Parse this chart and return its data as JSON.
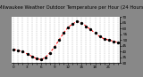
{
  "title": "Milwaukee Weather Outdoor Temperature per Hour (24 Hours)",
  "hours": [
    0,
    1,
    2,
    3,
    4,
    5,
    6,
    7,
    8,
    9,
    10,
    11,
    12,
    13,
    14,
    15,
    16,
    17,
    18,
    19,
    20,
    21,
    22,
    23
  ],
  "temps": [
    42,
    41,
    40,
    38,
    36,
    34,
    33,
    35,
    39,
    44,
    50,
    56,
    61,
    64,
    66,
    65,
    62,
    59,
    56,
    53,
    51,
    50,
    49,
    48
  ],
  "line_color": "#ff0000",
  "marker_color": "#000000",
  "bg_color": "#888888",
  "plot_bg_color": "#ffffff",
  "grid_color": "#aaaaaa",
  "ylim": [
    30,
    70
  ],
  "ytick_vals": [
    30,
    35,
    40,
    45,
    50,
    55,
    60,
    65,
    70
  ],
  "ytick_labels": [
    "30",
    "35",
    "40",
    "45",
    "50",
    "55",
    "60",
    "65",
    "70"
  ],
  "title_fontsize": 3.8,
  "tick_fontsize": 3.0,
  "line_width": 0.7,
  "marker_size": 2.0
}
